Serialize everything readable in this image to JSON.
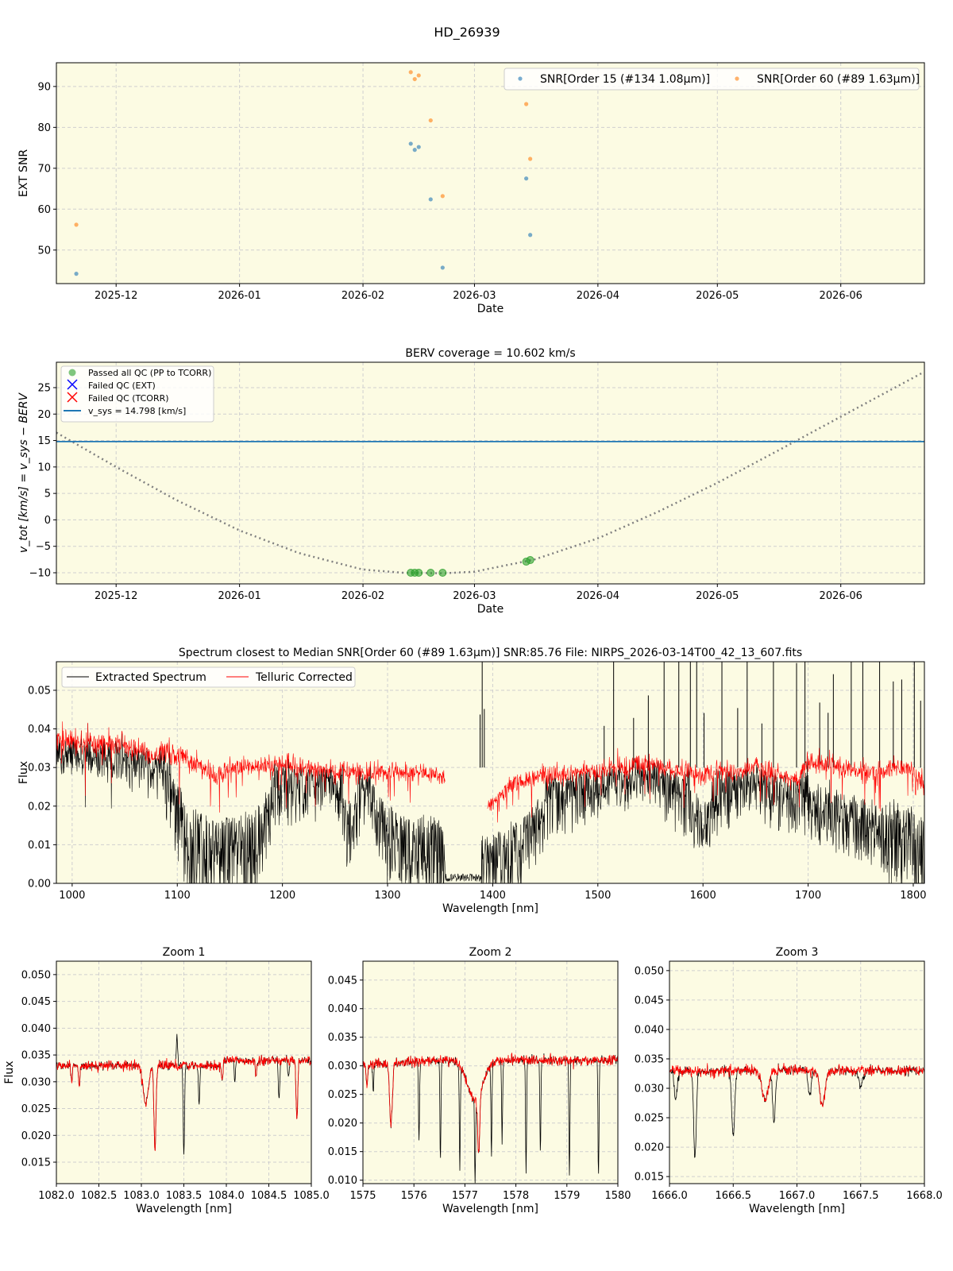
{
  "figure": {
    "title": "HD_26939"
  },
  "chart_data": [
    {
      "type": "scatter",
      "title": "",
      "xlabel": "Date",
      "ylabel": "EXT SNR",
      "xlim": [
        "2025-11-16",
        "2026-06-22"
      ],
      "ylim": [
        41.8,
        95.8
      ],
      "xticks": [
        "2025-12-01",
        "2026-01-01",
        "2026-02-01",
        "2026-03-01",
        "2026-04-01",
        "2026-05-01",
        "2026-06-01"
      ],
      "xtick_labels": [
        "2025-12",
        "2026-01",
        "2026-02",
        "2026-03",
        "2026-04",
        "2026-05",
        "2026-06"
      ],
      "yticks": [
        50,
        60,
        70,
        80,
        90
      ],
      "ytick_labels": [
        "50",
        "60",
        "70",
        "80",
        "90"
      ],
      "grid": true,
      "legend": "top-right",
      "series": [
        {
          "name": "SNR[Order 15 (#134 1.08μm)]",
          "color": "#1f77b4",
          "x": [
            "2025-11-21",
            "2026-02-13",
            "2026-02-14",
            "2026-02-15",
            "2026-02-18",
            "2026-02-21",
            "2026-03-14",
            "2026-03-15"
          ],
          "y": [
            44.2,
            76.0,
            74.5,
            75.2,
            62.4,
            45.7,
            67.5,
            53.7
          ]
        },
        {
          "name": "SNR[Order 60 (#89 1.63μm)]",
          "color": "#ff7f0e",
          "x": [
            "2025-11-21",
            "2026-02-13",
            "2026-02-14",
            "2026-02-15",
            "2026-02-18",
            "2026-02-21",
            "2026-03-14",
            "2026-03-15"
          ],
          "y": [
            56.2,
            93.5,
            91.8,
            92.7,
            81.7,
            63.2,
            85.7,
            72.3
          ]
        }
      ]
    },
    {
      "type": "scatter",
      "title": "BERV coverage = 10.602 km/s",
      "xlabel": "Date",
      "ylabel": "v_tot [km/s] = v_sys − BERV",
      "xlim": [
        "2025-11-16",
        "2026-06-22"
      ],
      "ylim": [
        -12.1,
        29.8
      ],
      "xticks": [
        "2025-12-01",
        "2026-01-01",
        "2026-02-01",
        "2026-03-01",
        "2026-04-01",
        "2026-05-01",
        "2026-06-01"
      ],
      "xtick_labels": [
        "2025-12",
        "2026-01",
        "2026-02",
        "2026-03",
        "2026-04",
        "2026-05",
        "2026-06"
      ],
      "yticks": [
        -10,
        -5,
        0,
        5,
        10,
        15,
        20,
        25
      ],
      "ytick_labels": [
        "−10",
        "−5",
        "0",
        "5",
        "10",
        "15",
        "20",
        "25"
      ],
      "grid": true,
      "legend": "top-left",
      "legend_entries": [
        "Passed all QC (PP to TCORR)",
        "Failed QC (EXT)",
        "Failed QC (TCORR)",
        "v_sys = 14.798 [km/s]"
      ],
      "v_sys": 14.798,
      "passed": {
        "color": "#2ca02c",
        "x": [
          "2026-02-13",
          "2026-02-14",
          "2026-02-15",
          "2026-02-18",
          "2026-02-21",
          "2026-03-14",
          "2026-03-15"
        ],
        "y": [
          -10.0,
          -10.0,
          -10.0,
          -10.0,
          -10.0,
          -7.9,
          -7.6
        ]
      },
      "failed_ext": {
        "color": "#0000ff",
        "x": [],
        "y": []
      },
      "failed_tcorr": {
        "color": "#ff0000",
        "x": [],
        "y": []
      },
      "vsys_color": "#1f77b4",
      "berv_curve": {
        "color": "#808080",
        "x": [
          "2025-11-16",
          "2025-12-01",
          "2025-12-16",
          "2026-01-01",
          "2026-01-16",
          "2026-02-01",
          "2026-02-11",
          "2026-02-21",
          "2026-03-01",
          "2026-03-16",
          "2026-04-01",
          "2026-04-16",
          "2026-05-01",
          "2026-05-16",
          "2026-06-01",
          "2026-06-22"
        ],
        "y": [
          16.5,
          10.0,
          3.8,
          -2.0,
          -6.3,
          -9.4,
          -10.0,
          -10.1,
          -9.8,
          -7.5,
          -3.5,
          1.5,
          7.0,
          13.0,
          19.5,
          28.0
        ]
      }
    },
    {
      "type": "line",
      "title": "Spectrum closest to Median SNR[Order 60 (#89 1.63μm)]     SNR:85.76     File: NIRPS_2026-03-14T00_42_13_607.fits",
      "xlabel": "Wavelength [nm]",
      "ylabel": "Flux",
      "xlim": [
        985,
        1810.6
      ],
      "ylim": [
        0,
        0.0574
      ],
      "xticks": [
        1000,
        1100,
        1200,
        1300,
        1400,
        1500,
        1600,
        1700,
        1800
      ],
      "xtick_labels": [
        "1000",
        "1100",
        "1200",
        "1300",
        "1400",
        "1500",
        "1600",
        "1700",
        "1800"
      ],
      "yticks": [
        0,
        0.01,
        0.02,
        0.03,
        0.04,
        0.05
      ],
      "ytick_labels": [
        "0.00",
        "0.01",
        "0.02",
        "0.03",
        "0.04",
        "0.05"
      ],
      "grid": true,
      "legend": "top-left",
      "series": [
        {
          "name": "Extracted Spectrum",
          "color": "#000000"
        },
        {
          "name": "Telluric Corrected",
          "color": "#ff0000"
        }
      ],
      "continuum": [
        [
          985,
          0.037
        ],
        [
          1050,
          0.036
        ],
        [
          1075,
          0.033
        ],
        [
          1090,
          0.034
        ],
        [
          1120,
          0.031
        ],
        [
          1135,
          0.027
        ],
        [
          1150,
          0.03
        ],
        [
          1200,
          0.031
        ],
        [
          1250,
          0.029
        ],
        [
          1300,
          0.029
        ],
        [
          1350,
          0.028
        ],
        [
          1395,
          0.02
        ],
        [
          1420,
          0.026
        ],
        [
          1450,
          0.028
        ],
        [
          1500,
          0.029
        ],
        [
          1550,
          0.031
        ],
        [
          1580,
          0.029
        ],
        [
          1600,
          0.028
        ],
        [
          1650,
          0.03
        ],
        [
          1690,
          0.027
        ],
        [
          1700,
          0.032
        ],
        [
          1750,
          0.029
        ],
        [
          1800,
          0.03
        ],
        [
          1810,
          0.025
        ]
      ],
      "telluric_corrected_gap": [
        1355,
        1395
      ],
      "telluric_depth": [
        [
          985,
          0.15
        ],
        [
          1080,
          0.25
        ],
        [
          1100,
          0.6
        ],
        [
          1110,
          1
        ],
        [
          1170,
          1
        ],
        [
          1190,
          0.5
        ],
        [
          1250,
          0.2
        ],
        [
          1262,
          0.7
        ],
        [
          1280,
          0.3
        ],
        [
          1300,
          0.8
        ],
        [
          1330,
          1
        ],
        [
          1390,
          1
        ],
        [
          1420,
          1
        ],
        [
          1450,
          0.5
        ],
        [
          1500,
          0.3
        ],
        [
          1550,
          0.2
        ],
        [
          1575,
          0.45
        ],
        [
          1600,
          0.55
        ],
        [
          1640,
          0.3
        ],
        [
          1700,
          0.5
        ],
        [
          1760,
          0.65
        ],
        [
          1810,
          1
        ]
      ],
      "emission_spikes": [
        1388,
        1390,
        1392,
        1506,
        1515,
        1534,
        1548,
        1563,
        1577,
        1588,
        1594,
        1601,
        1618,
        1633,
        1642,
        1656,
        1667,
        1689,
        1697,
        1711,
        1719,
        1724,
        1741,
        1752,
        1768,
        1781,
        1789,
        1801,
        1807
      ]
    },
    {
      "type": "line",
      "title": "Zoom 1",
      "xlabel": "Wavelength [nm]",
      "ylabel": "Flux",
      "xlim": [
        1082.0,
        1085.0
      ],
      "ylim": [
        0.011,
        0.0525
      ],
      "xticks": [
        1082.0,
        1082.5,
        1083.0,
        1083.5,
        1084.0,
        1084.5,
        1085.0
      ],
      "xtick_labels": [
        "1082.0",
        "1082.5",
        "1083.0",
        "1083.5",
        "1084.0",
        "1084.5",
        "1085.0"
      ],
      "yticks": [
        0.015,
        0.02,
        0.025,
        0.03,
        0.035,
        0.04,
        0.045,
        0.05
      ],
      "ytick_labels": [
        "0.015",
        "0.020",
        "0.025",
        "0.030",
        "0.035",
        "0.040",
        "0.045",
        "0.050"
      ],
      "grid": true,
      "continuum": [
        [
          1082,
          0.033
        ],
        [
          1083.9,
          0.033
        ],
        [
          1084.0,
          0.034
        ],
        [
          1085,
          0.034
        ]
      ],
      "lines": [
        [
          1082.18,
          0.003,
          0.008,
          "both"
        ],
        [
          1082.27,
          0.004,
          0.008,
          "both"
        ],
        [
          1083.05,
          0.007,
          0.03,
          "both"
        ],
        [
          1083.16,
          0.016,
          0.012,
          "both"
        ],
        [
          1083.42,
          -0.006,
          0.008,
          "black"
        ],
        [
          1083.5,
          0.017,
          0.008,
          "black"
        ],
        [
          1083.68,
          0.007,
          0.008,
          "black"
        ],
        [
          1083.95,
          0.003,
          0.01,
          "both"
        ],
        [
          1084.1,
          0.004,
          0.008,
          "black"
        ],
        [
          1084.35,
          0.003,
          0.008,
          "both"
        ],
        [
          1084.62,
          0.007,
          0.008,
          "black"
        ],
        [
          1084.73,
          0.003,
          0.008,
          "black"
        ],
        [
          1084.83,
          0.011,
          0.01,
          "both"
        ]
      ]
    },
    {
      "type": "line",
      "title": "Zoom 2",
      "xlabel": "Wavelength [nm]",
      "ylabel": "",
      "xlim": [
        1575,
        1580
      ],
      "ylim": [
        0.0094,
        0.0483
      ],
      "xticks": [
        1575,
        1576,
        1577,
        1578,
        1579,
        1580
      ],
      "xtick_labels": [
        "1575",
        "1576",
        "1577",
        "1578",
        "1579",
        "1580"
      ],
      "yticks": [
        0.01,
        0.015,
        0.02,
        0.025,
        0.03,
        0.035,
        0.04,
        0.045
      ],
      "ytick_labels": [
        "0.010",
        "0.015",
        "0.020",
        "0.025",
        "0.030",
        "0.035",
        "0.040",
        "0.045"
      ],
      "grid": true,
      "continuum": [
        [
          1575,
          0.03
        ],
        [
          1576.5,
          0.031
        ],
        [
          1578,
          0.031
        ],
        [
          1580,
          0.031
        ]
      ],
      "lines": [
        [
          1575.08,
          0.004,
          0.015,
          "both"
        ],
        [
          1575.2,
          0.005,
          0.01,
          "black"
        ],
        [
          1575.55,
          0.011,
          0.025,
          "both"
        ],
        [
          1576.1,
          0.014,
          0.01,
          "black"
        ],
        [
          1576.52,
          0.018,
          0.01,
          "black"
        ],
        [
          1576.9,
          0.018,
          0.01,
          "black"
        ],
        [
          1577.2,
          0.007,
          0.15,
          "both"
        ],
        [
          1577.27,
          0.01,
          0.02,
          "both"
        ],
        [
          1577.2,
          0.014,
          0.01,
          "black"
        ],
        [
          1577.52,
          0.016,
          0.01,
          "black"
        ],
        [
          1577.73,
          0.014,
          0.01,
          "black"
        ],
        [
          1578.2,
          0.02,
          0.01,
          "black"
        ],
        [
          1578.48,
          0.016,
          0.01,
          "black"
        ],
        [
          1579.05,
          0.02,
          0.01,
          "black"
        ],
        [
          1579.62,
          0.02,
          0.01,
          "black"
        ]
      ]
    },
    {
      "type": "line",
      "title": "Zoom 3",
      "xlabel": "Wavelength [nm]",
      "ylabel": "",
      "xlim": [
        1666.0,
        1668.0
      ],
      "ylim": [
        0.0138,
        0.0516
      ],
      "xticks": [
        1666.0,
        1666.5,
        1667.0,
        1667.5,
        1668.0
      ],
      "xtick_labels": [
        "1666.0",
        "1666.5",
        "1667.0",
        "1667.5",
        "1668.0"
      ],
      "yticks": [
        0.015,
        0.02,
        0.025,
        0.03,
        0.035,
        0.04,
        0.045,
        0.05
      ],
      "ytick_labels": [
        "0.015",
        "0.020",
        "0.025",
        "0.030",
        "0.035",
        "0.040",
        "0.045",
        "0.050"
      ],
      "grid": true,
      "continuum": [
        [
          1666,
          0.033
        ],
        [
          1668,
          0.033
        ]
      ],
      "lines": [
        [
          1666.05,
          0.005,
          0.012,
          "black"
        ],
        [
          1666.2,
          0.015,
          0.01,
          "black"
        ],
        [
          1666.5,
          0.011,
          0.012,
          "black"
        ],
        [
          1666.75,
          0.005,
          0.025,
          "both"
        ],
        [
          1666.82,
          0.009,
          0.01,
          "black"
        ],
        [
          1667.1,
          0.004,
          0.012,
          "black"
        ],
        [
          1667.2,
          0.006,
          0.02,
          "both"
        ],
        [
          1667.5,
          0.003,
          0.015,
          "black"
        ]
      ]
    }
  ]
}
